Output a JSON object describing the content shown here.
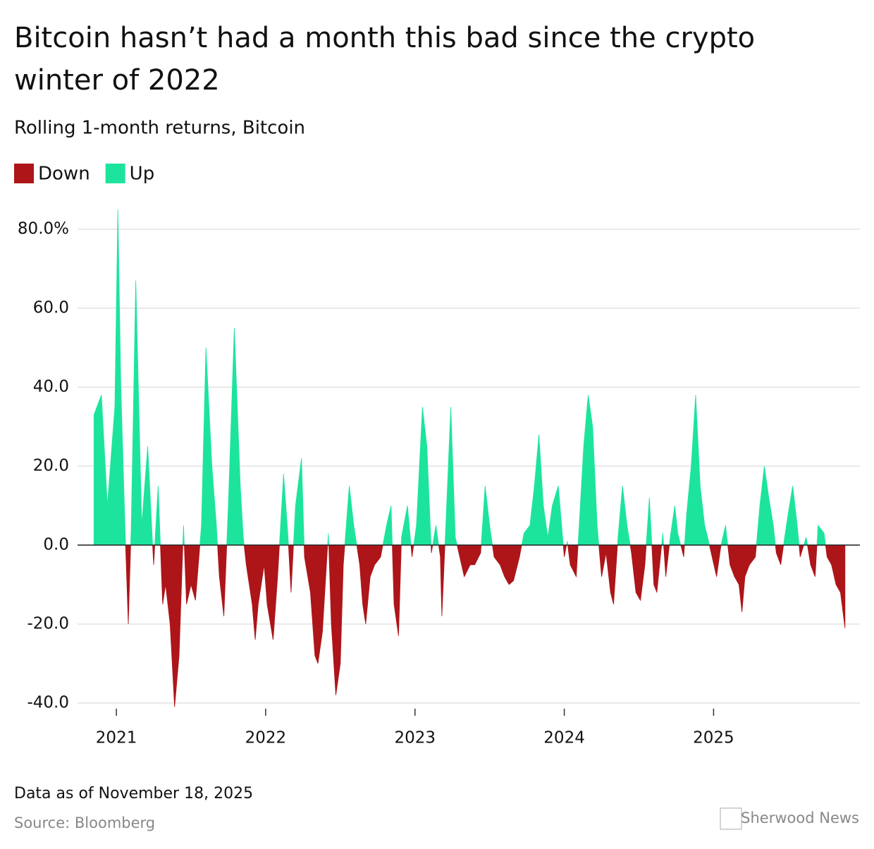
{
  "chart_data": {
    "type": "area",
    "title": "Bitcoin hasn’t had a month this bad since the crypto winter of 2022",
    "subtitle": "Rolling 1-month returns, Bitcoin",
    "legend": [
      {
        "name": "Down",
        "color": "#ad1519"
      },
      {
        "name": "Up",
        "color": "#1de49c"
      }
    ],
    "x": [
      2020.85,
      2020.9,
      2020.94,
      2020.99,
      2021.01,
      2021.03,
      2021.06,
      2021.08,
      2021.1,
      2021.13,
      2021.17,
      2021.21,
      2021.24,
      2021.25,
      2021.28,
      2021.31,
      2021.33,
      2021.36,
      2021.39,
      2021.42,
      2021.45,
      2021.47,
      2021.5,
      2021.53,
      2021.57,
      2021.6,
      2021.64,
      2021.67,
      2021.69,
      2021.72,
      2021.75,
      2021.79,
      2021.83,
      2021.85,
      2021.87,
      2021.91,
      2021.93,
      2021.95,
      2021.99,
      2022.01,
      2022.05,
      2022.08,
      2022.12,
      2022.15,
      2022.17,
      2022.2,
      2022.24,
      2022.26,
      2022.3,
      2022.33,
      2022.35,
      2022.38,
      2022.42,
      2022.44,
      2022.47,
      2022.5,
      2022.52,
      2022.56,
      2022.59,
      2022.63,
      2022.65,
      2022.67,
      2022.7,
      2022.73,
      2022.77,
      2022.81,
      2022.84,
      2022.86,
      2022.89,
      2022.91,
      2022.95,
      2022.98,
      2023.01,
      2023.05,
      2023.08,
      2023.11,
      2023.14,
      2023.17,
      2023.18,
      2023.21,
      2023.24,
      2023.27,
      2023.3,
      2023.33,
      2023.37,
      2023.4,
      2023.44,
      2023.47,
      2023.5,
      2023.53,
      2023.57,
      2023.6,
      2023.63,
      2023.66,
      2023.7,
      2023.73,
      2023.77,
      2023.8,
      2023.83,
      2023.86,
      2023.89,
      2023.92,
      2023.96,
      2024.0,
      2024.02,
      2024.04,
      2024.08,
      2024.1,
      2024.13,
      2024.16,
      2024.19,
      2024.22,
      2024.25,
      2024.28,
      2024.31,
      2024.33,
      2024.36,
      2024.39,
      2024.42,
      2024.45,
      2024.48,
      2024.51,
      2024.54,
      2024.57,
      2024.6,
      2024.62,
      2024.66,
      2024.68,
      2024.71,
      2024.74,
      2024.76,
      2024.8,
      2024.82,
      2024.85,
      2024.88,
      2024.91,
      2024.94,
      2024.96,
      2024.99,
      2025.02,
      2025.05,
      2025.08,
      2025.11,
      2025.14,
      2025.17,
      2025.19,
      2025.21,
      2025.24,
      2025.28,
      2025.31,
      2025.34,
      2025.37,
      2025.4,
      2025.42,
      2025.45,
      2025.48,
      2025.5,
      2025.53,
      2025.56,
      2025.58,
      2025.62,
      2025.65,
      2025.68,
      2025.7,
      2025.74,
      2025.76,
      2025.79,
      2025.82,
      2025.85,
      2025.88
    ],
    "values": [
      33,
      38,
      10,
      35,
      85,
      40,
      2,
      -20,
      5,
      67,
      5,
      25,
      2,
      -5,
      15,
      -15,
      -10,
      -20,
      -41,
      -28,
      5,
      -15,
      -10,
      -14,
      5,
      50,
      20,
      5,
      -8,
      -18,
      10,
      55,
      15,
      2,
      -5,
      -15,
      -24,
      -15,
      -5,
      -15,
      -24,
      -8,
      18,
      2,
      -12,
      10,
      22,
      -3,
      -12,
      -28,
      -30,
      -22,
      3,
      -20,
      -38,
      -30,
      -5,
      15,
      5,
      -5,
      -15,
      -20,
      -8,
      -5,
      -3,
      5,
      10,
      -15,
      -23,
      2,
      10,
      -3,
      5,
      35,
      25,
      -2,
      5,
      -3,
      -18,
      8,
      35,
      2,
      -3,
      -8,
      -5,
      -5,
      -2,
      15,
      5,
      -3,
      -5,
      -8,
      -10,
      -9,
      -3,
      3,
      5,
      15,
      28,
      10,
      2,
      10,
      15,
      -3,
      1,
      -5,
      -8,
      5,
      25,
      38,
      30,
      5,
      -8,
      -2,
      -12,
      -15,
      2,
      15,
      5,
      -2,
      -12,
      -14,
      -5,
      12,
      -10,
      -12,
      3,
      -8,
      2,
      10,
      3,
      -3,
      8,
      20,
      38,
      15,
      5,
      2,
      -3,
      -8,
      0,
      5,
      -5,
      -8,
      -10,
      -17,
      -8,
      -5,
      -3,
      10,
      20,
      12,
      5,
      -2,
      -5,
      3,
      8,
      15,
      5,
      -3,
      2,
      -5,
      -8,
      5,
      3,
      -3,
      -5,
      -10,
      -12,
      -21
    ],
    "xlim": [
      2020.74,
      2025.98
    ],
    "xticks": [
      2021,
      2022,
      2023,
      2024,
      2025
    ],
    "ylim": [
      -42,
      87
    ],
    "yticks": [
      {
        "value": 80,
        "label": "80.0%"
      },
      {
        "value": 60,
        "label": "60.0"
      },
      {
        "value": 40,
        "label": "40.0"
      },
      {
        "value": 20,
        "label": "20.0"
      },
      {
        "value": 0,
        "label": "0.0"
      },
      {
        "value": -20,
        "label": "-20.0"
      },
      {
        "value": -40,
        "label": "-40.0"
      }
    ],
    "grid": true,
    "note": "Data as of November 18, 2025",
    "source": "Source: Bloomberg",
    "brand": "Sherwood News"
  }
}
